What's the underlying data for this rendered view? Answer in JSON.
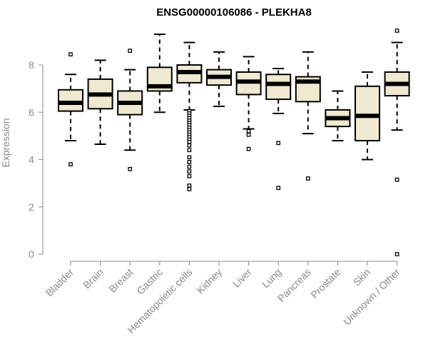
{
  "chart_data": {
    "type": "boxplot",
    "title": "ENSG00000106086 - PLEKHA8",
    "xlabel": "",
    "ylabel": "Expression",
    "ylim": [
      0,
      9.6
    ],
    "yticks": [
      0,
      2,
      4,
      6,
      8
    ],
    "box_color": "#efe9d1",
    "axis_color": "#888888",
    "categories": [
      "Bladder",
      "Brain",
      "Breast",
      "Gastric",
      "Hematopoietic cells",
      "Kidney",
      "Liver",
      "Lung",
      "Pancreas",
      "Prostate",
      "Skin",
      "Unknown / Other"
    ],
    "boxes": [
      {
        "min": 4.8,
        "q1": 6.05,
        "median": 6.4,
        "q3": 6.95,
        "max": 7.6,
        "outliers": [
          8.45,
          3.8
        ]
      },
      {
        "min": 4.65,
        "q1": 6.15,
        "median": 6.75,
        "q3": 7.4,
        "max": 8.2,
        "outliers": []
      },
      {
        "min": 4.4,
        "q1": 5.9,
        "median": 6.4,
        "q3": 6.9,
        "max": 7.8,
        "outliers": [
          8.6,
          3.6
        ]
      },
      {
        "min": 6.0,
        "q1": 6.9,
        "median": 7.1,
        "q3": 7.9,
        "max": 9.3,
        "outliers": []
      },
      {
        "min": 6.1,
        "q1": 7.25,
        "median": 7.7,
        "q3": 8.0,
        "max": 8.95,
        "outliers": [
          6.05,
          5.95,
          5.85,
          5.75,
          5.65,
          5.55,
          5.45,
          5.35,
          5.25,
          5.15,
          5.05,
          4.95,
          4.85,
          4.75,
          4.6,
          4.4,
          4.1,
          3.9,
          3.7,
          3.5,
          3.3,
          2.9,
          2.75
        ]
      },
      {
        "min": 6.25,
        "q1": 7.15,
        "median": 7.5,
        "q3": 7.8,
        "max": 8.55,
        "outliers": []
      },
      {
        "min": 5.3,
        "q1": 6.75,
        "median": 7.3,
        "q3": 7.7,
        "max": 8.35,
        "outliers": [
          5.2,
          5.05,
          4.45
        ]
      },
      {
        "min": 5.95,
        "q1": 6.55,
        "median": 7.2,
        "q3": 7.6,
        "max": 7.85,
        "outliers": [
          4.7,
          2.8
        ]
      },
      {
        "min": 5.1,
        "q1": 6.45,
        "median": 7.3,
        "q3": 7.5,
        "max": 8.55,
        "outliers": [
          3.2
        ]
      },
      {
        "min": 4.8,
        "q1": 5.4,
        "median": 5.75,
        "q3": 6.1,
        "max": 6.9,
        "outliers": []
      },
      {
        "min": 4.0,
        "q1": 4.8,
        "median": 5.85,
        "q3": 7.1,
        "max": 7.7,
        "outliers": []
      },
      {
        "min": 5.25,
        "q1": 6.7,
        "median": 7.2,
        "q3": 7.7,
        "max": 8.95,
        "outliers": [
          9.45,
          3.15,
          0.0
        ]
      }
    ]
  }
}
